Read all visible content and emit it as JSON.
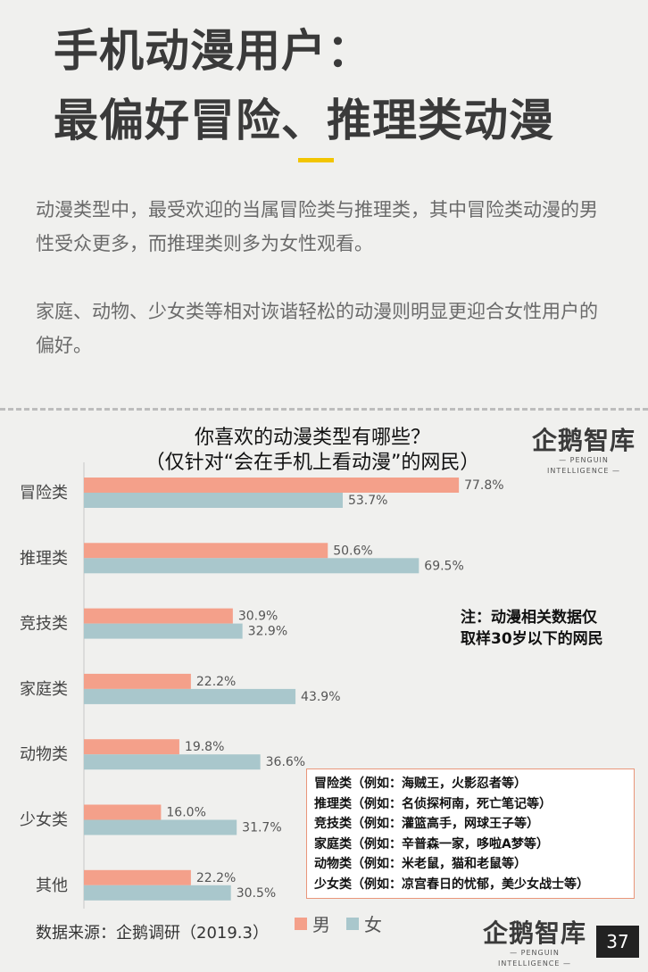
{
  "header": {
    "title_line1": "手机动漫用户：",
    "title_line2": "最偏好冒险、推理类动漫"
  },
  "body": {
    "para1": "动漫类型中，最受欢迎的当属冒险类与推理类，其中冒险类动漫的男性受众更多，而推理类则多为女性观看。",
    "para2": "家庭、动物、少女类等相对诙谐轻松的动漫则明显更迎合女性用户的偏好。"
  },
  "chart_data": {
    "type": "bar",
    "orientation": "horizontal",
    "title_line1": "你喜欢的动漫类型有哪些？",
    "title_line2": "（仅针对“会在手机上看动漫”的网民）",
    "categories": [
      "冒险类",
      "推理类",
      "竞技类",
      "家庭类",
      "动物类",
      "少女类",
      "其他"
    ],
    "series": [
      {
        "name": "男",
        "color": "#f4a08a",
        "values": [
          77.8,
          50.6,
          30.9,
          22.2,
          19.8,
          16.0,
          22.2
        ]
      },
      {
        "name": "女",
        "color": "#a9c7cc",
        "values": [
          53.7,
          69.5,
          32.9,
          43.9,
          36.6,
          31.7,
          30.5
        ]
      }
    ],
    "value_suffix": "%",
    "xlim": [
      0,
      100
    ],
    "grid": false,
    "legend": "bottom"
  },
  "note": {
    "line1": "注：动漫相关数据仅",
    "line2": "取样30岁以下的网民"
  },
  "examples": [
    "冒险类（例如：海贼王，火影忍者等）",
    "推理类（例如：名侦探柯南，死亡笔记等）",
    "竞技类（例如：灌篮高手，网球王子等）",
    "家庭类（例如：辛普森一家，哆啦A梦等）",
    "动物类（例如：米老鼠，猫和老鼠等）",
    "少女类（例如：凉宫春日的忧郁，美少女战士等）"
  ],
  "legend": {
    "male": "男",
    "female": "女"
  },
  "source": "数据来源：企鹅调研（2019.3）",
  "logo": {
    "main": "企鹅智库",
    "sub": "PENGUIN INTELLIGENCE"
  },
  "page_number": "37"
}
